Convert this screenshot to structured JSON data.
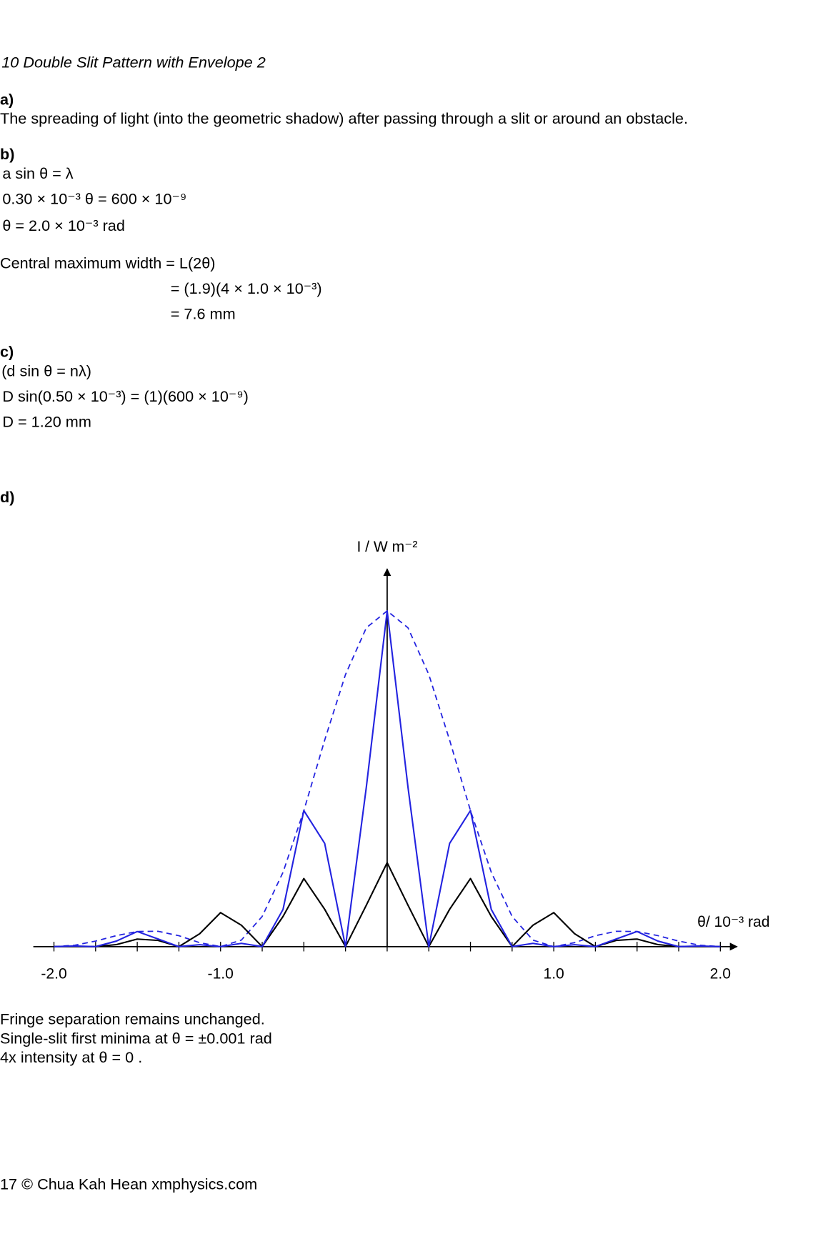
{
  "header": {
    "title": "10 Double Slit Pattern with Envelope 2"
  },
  "parts": [
    {
      "label": "a)",
      "lines": [
        "The spreading of light (into the geometric shadow) after passing through a slit or around an obstacle."
      ]
    },
    {
      "label": "b)",
      "lines": [
        "a sin θ = λ",
        "0.30 × 10⁻³ θ = 600 × 10⁻⁹",
        "θ = 2.0 × 10⁻³  rad",
        "Central maximum width = L(2θ)",
        "= (1.9)(4 × 1.0 × 10⁻³)",
        "= 7.6 mm"
      ]
    },
    {
      "label": "c)",
      "lines": [
        "(d sin θ = nλ)",
        "D sin(0.50 × 10⁻³) = (1)(600 × 10⁻⁹)",
        "D = 1.20 mm"
      ]
    },
    {
      "label": "d)",
      "lines": [
        "Fringe separation remains unchanged.",
        "Single-slit first minima at  θ = ±0.001 rad",
        "4x intensity at  θ = 0 ."
      ]
    }
  ],
  "chart_data": {
    "type": "line",
    "y_label": "I / W m⁻²",
    "x_label": "θ/ 10⁻³ rad",
    "x": [
      -2,
      -1.875,
      -1.75,
      -1.625,
      -1.5,
      -1.375,
      -1.25,
      -1.125,
      -1,
      -0.875,
      -0.75,
      -0.625,
      -0.5,
      -0.375,
      -0.25,
      -0.125,
      0,
      0.125,
      0.25,
      0.375,
      0.5,
      0.625,
      0.75,
      0.875,
      1,
      1.125,
      1.25,
      1.375,
      1.5,
      1.625,
      1.75,
      1.875,
      2
    ],
    "series": [
      {
        "color": "#2323e0",
        "dashed": true,
        "values": [
          0,
          0.017,
          0.066,
          0.131,
          0.18,
          0.183,
          0.13,
          0.047,
          0,
          0.078,
          0.36,
          0.886,
          1.621,
          2.46,
          3.242,
          3.799,
          4,
          3.799,
          3.242,
          2.46,
          1.621,
          0.886,
          0.36,
          0.078,
          0,
          0.047,
          0.13,
          0.183,
          0.18,
          0.131,
          0.066,
          0.017,
          0
        ]
      },
      {
        "color": "#000000",
        "dashed": false,
        "values": [
          0,
          0.002,
          0,
          0.024,
          0.09,
          0.074,
          0,
          0.154,
          0.405,
          0.255,
          0,
          0.359,
          0.811,
          0.445,
          0,
          0.494,
          1,
          0.494,
          0,
          0.445,
          0.811,
          0.359,
          0,
          0.255,
          0.405,
          0.154,
          0,
          0.074,
          0.09,
          0.024,
          0,
          0.002,
          0
        ]
      },
      {
        "color": "#2323e0",
        "dashed": false,
        "values": [
          0,
          0.008,
          0,
          0.066,
          0.18,
          0.091,
          0,
          0.023,
          0,
          0.039,
          0,
          0.443,
          1.621,
          1.23,
          0,
          1.9,
          4,
          1.9,
          0,
          1.23,
          1.621,
          0.443,
          0,
          0.039,
          0,
          0.023,
          0,
          0.091,
          0.18,
          0.066,
          0,
          0.008,
          0
        ]
      }
    ],
    "xlim": [
      -2.1,
      2.1
    ],
    "ylim": [
      0,
      4.5
    ],
    "xticks": [
      {
        "value": -2,
        "label": "-2.0"
      },
      {
        "value": -1,
        "label": "-1.0"
      },
      {
        "value": 1,
        "label": "1.0"
      },
      {
        "value": 2,
        "label": "2.0"
      }
    ],
    "minor_xticks": [
      -2,
      -1.75,
      -1.5,
      -1.25,
      -1,
      -0.75,
      -0.5,
      -0.25,
      0,
      0.25,
      0.5,
      0.75,
      1,
      1.25,
      1.5,
      1.75,
      2
    ]
  },
  "footer": "17 © Chua Kah Hean xmphysics.com"
}
